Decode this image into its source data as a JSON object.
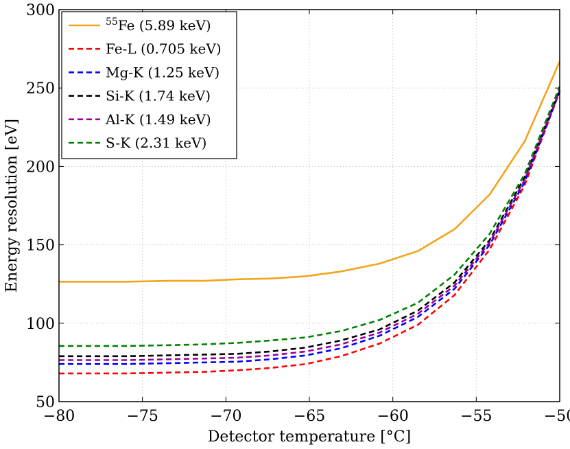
{
  "chart_data": {
    "type": "line",
    "xlabel": "Detector temperature [°C]",
    "ylabel": "Energy resolution [eV]",
    "xlim": [
      -80,
      -50
    ],
    "ylim": [
      50,
      300
    ],
    "xticks": [
      -80,
      -75,
      -70,
      -65,
      -60,
      -55,
      -50
    ],
    "yticks": [
      50,
      100,
      150,
      200,
      250,
      300
    ],
    "xtick_labels": [
      "−80",
      "−75",
      "−70",
      "−65",
      "−60",
      "−55",
      "−50"
    ],
    "ytick_labels": [
      "50",
      "100",
      "150",
      "200",
      "250",
      "300"
    ],
    "grid": true,
    "legend_position": "top-left",
    "x": [
      -80,
      -77.9,
      -75.9,
      -73.4,
      -71.3,
      -69.3,
      -67.3,
      -65.2,
      -63.1,
      -60.8,
      -58.5,
      -56.3,
      -54.2,
      -52.1,
      -50
    ],
    "series": [
      {
        "name_prefix": "55",
        "name": "Fe (5.89 keV)",
        "color": "#f5a31a",
        "dash": "solid",
        "values": [
          126.5,
          126.5,
          126.5,
          127,
          127,
          128,
          128.5,
          130,
          133,
          138,
          146,
          160,
          182,
          216,
          267
        ]
      },
      {
        "name": "Fe-L (0.705 keV)",
        "color": "#ff0000",
        "dash": "dashed",
        "values": [
          68,
          68,
          68,
          68.5,
          69,
          70,
          71.5,
          74,
          79,
          87,
          99,
          118,
          147,
          188,
          248
        ]
      },
      {
        "name": "Mg-K (1.25 keV)",
        "color": "#0000ff",
        "dash": "dashed",
        "values": [
          74,
          74,
          74,
          74.5,
          75,
          75.5,
          77,
          79.5,
          84,
          92,
          104,
          122,
          150,
          190,
          248
        ]
      },
      {
        "name": "Si-K (1.74 keV)",
        "color": "#000000",
        "dash": "dashed",
        "values": [
          79,
          79,
          79,
          79.5,
          80,
          80.5,
          82,
          84.5,
          89,
          96,
          108,
          126,
          153,
          193,
          249
        ]
      },
      {
        "name": "Al-K (1.49 keV)",
        "color": "#990099",
        "dash": "dashed",
        "values": [
          76.5,
          76.5,
          76.5,
          77,
          77.5,
          78,
          79.5,
          82,
          86.5,
          94,
          106,
          124,
          151.5,
          191.5,
          248.5
        ]
      },
      {
        "name": "S-K (2.31 keV)",
        "color": "#008000",
        "dash": "dashed",
        "values": [
          85.5,
          85.5,
          85.5,
          86,
          86.5,
          87.5,
          89,
          91,
          95,
          102,
          113,
          131,
          157,
          195,
          251
        ]
      }
    ]
  }
}
